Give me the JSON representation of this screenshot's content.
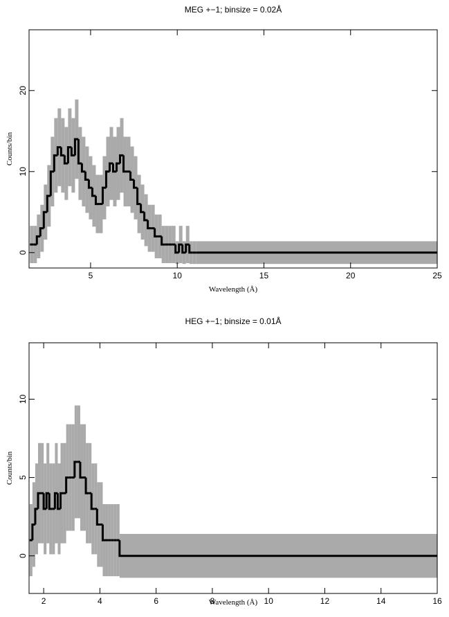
{
  "chart_data": [
    {
      "type": "histogram",
      "title": "MEG +−1; binsize = 0.02Å",
      "xlabel": "Wavelength (Å)",
      "ylabel": "Counts/bin",
      "color": "#000000",
      "error_color": "#aaaaaa",
      "xlim": [
        1.45,
        25
      ],
      "ylim": [
        -1.9,
        27.5
      ],
      "xticks": [
        5,
        10,
        15,
        20,
        25
      ],
      "yticks": [
        0,
        10,
        20
      ],
      "bins": [
        1.5,
        1.7,
        1.9,
        2.1,
        2.3,
        2.5,
        2.7,
        2.9,
        3.1,
        3.3,
        3.5,
        3.7,
        3.9,
        4.1,
        4.3,
        4.5,
        4.7,
        4.9,
        5.1,
        5.3,
        5.5,
        5.7,
        5.9,
        6.1,
        6.3,
        6.5,
        6.7,
        6.9,
        7.1,
        7.3,
        7.5,
        7.7,
        7.9,
        8.1,
        8.3,
        8.5,
        8.7,
        8.9,
        9.1,
        9.3,
        9.5,
        9.7,
        9.9,
        10.1,
        10.3,
        10.5,
        10.7,
        10.9,
        11.1,
        25
      ],
      "values": [
        1,
        1,
        2,
        3,
        5,
        7,
        10,
        12,
        13,
        12,
        11,
        13,
        12,
        14,
        11,
        10,
        9,
        8,
        7,
        6,
        6,
        8,
        10,
        11,
        10,
        11,
        12,
        10,
        10,
        9,
        8,
        6,
        5,
        4,
        3,
        3,
        2,
        2,
        1,
        1,
        1,
        1,
        0,
        1,
        0,
        1,
        0,
        0,
        0
      ],
      "errors": [
        2.3,
        2.3,
        2.7,
        2.9,
        3.4,
        3.8,
        4.3,
        4.6,
        4.8,
        4.6,
        4.5,
        4.8,
        4.6,
        4.9,
        4.5,
        4.3,
        4.1,
        3.9,
        3.8,
        3.6,
        3.6,
        3.9,
        4.3,
        4.5,
        4.3,
        4.5,
        4.6,
        4.3,
        4.3,
        4.1,
        3.9,
        3.6,
        3.4,
        3.2,
        2.9,
        2.9,
        2.7,
        2.7,
        2.3,
        2.3,
        2.3,
        2.3,
        1.4,
        2.3,
        1.4,
        2.3,
        1.4,
        1.4,
        1.4
      ]
    },
    {
      "type": "histogram",
      "title": "HEG +−1; binsize = 0.01Å",
      "xlabel": "Wavelength (Å)",
      "ylabel": "Counts/bin",
      "color": "#000000",
      "error_color": "#aaaaaa",
      "xlim": [
        1.48,
        16
      ],
      "ylim": [
        -2.4,
        13.6
      ],
      "xticks": [
        2,
        4,
        6,
        8,
        10,
        12,
        14,
        16
      ],
      "yticks": [
        0,
        5,
        10
      ],
      "bins": [
        1.5,
        1.6,
        1.7,
        1.8,
        1.9,
        2.0,
        2.1,
        2.2,
        2.3,
        2.4,
        2.5,
        2.6,
        2.7,
        2.8,
        2.9,
        3.0,
        3.1,
        3.2,
        3.3,
        3.4,
        3.5,
        3.6,
        3.7,
        3.8,
        3.9,
        4.0,
        4.1,
        4.2,
        4.3,
        4.4,
        4.5,
        4.6,
        4.7,
        16
      ],
      "values": [
        1,
        2,
        3,
        4,
        4,
        3,
        4,
        3,
        3,
        4,
        3,
        4,
        4,
        5,
        5,
        5,
        6,
        6,
        5,
        5,
        4,
        4,
        3,
        3,
        2,
        2,
        1,
        1,
        1,
        1,
        1,
        1,
        0
      ],
      "errors": [
        2.3,
        2.7,
        2.9,
        3.2,
        3.2,
        2.9,
        3.2,
        2.9,
        2.9,
        3.2,
        2.9,
        3.2,
        3.2,
        3.4,
        3.4,
        3.4,
        3.6,
        3.6,
        3.4,
        3.4,
        3.2,
        3.2,
        2.9,
        2.9,
        2.7,
        2.7,
        2.3,
        2.3,
        2.3,
        2.3,
        2.3,
        2.3,
        1.4
      ]
    }
  ]
}
